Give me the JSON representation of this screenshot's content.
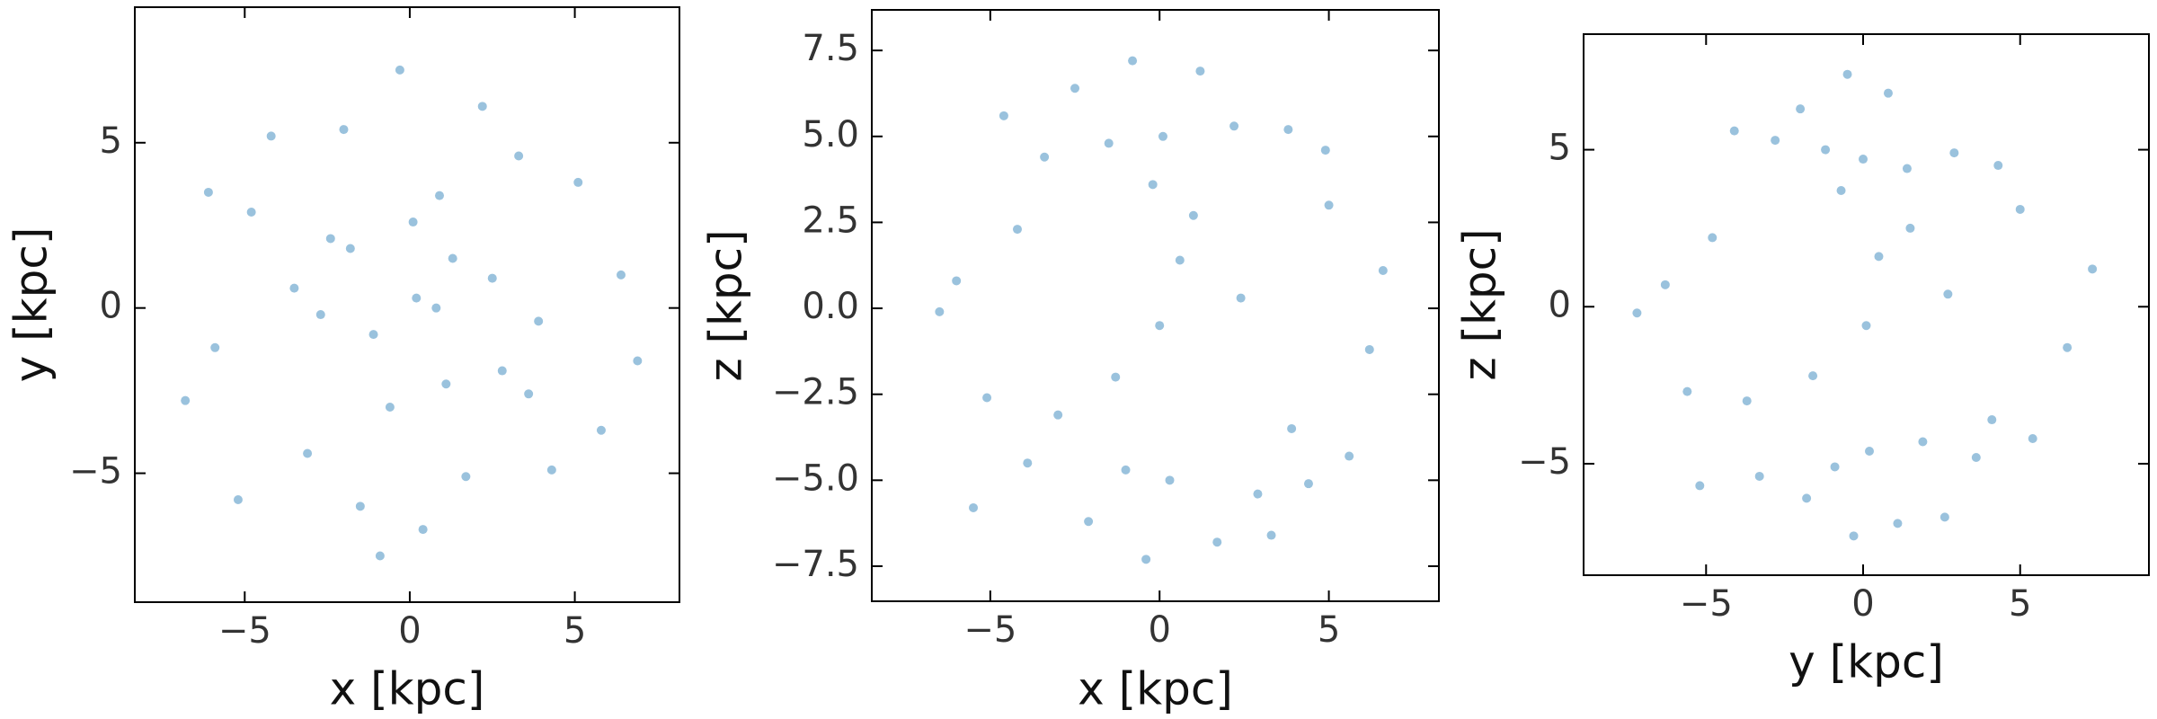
{
  "chart_data": [
    {
      "type": "scatter",
      "x_label": "x [kpc]",
      "y_label": "y [kpc]",
      "color": "#1f77b4",
      "xlim": [
        -8.33,
        8.17
      ],
      "ylim": [
        -8.9,
        9.1
      ],
      "xticks": [
        {
          "value": -5,
          "label": "−5"
        },
        0,
        5
      ],
      "yticks": [
        {
          "value": -5,
          "label": "−5"
        },
        0,
        5
      ],
      "x": [
        0.2,
        -1.1,
        1.3,
        -2.4,
        2.8,
        -0.6,
        0.9,
        -3.5,
        3.9,
        -4.8,
        5.1,
        -5.9,
        6.4,
        -6.8,
        1.7,
        -2.0,
        0.4,
        -0.3,
        2.2,
        -1.5,
        4.3,
        -3.1,
        0.8,
        -4.2,
        3.3,
        -6.1,
        5.8,
        -0.9,
        1.1,
        -2.7,
        2.5,
        -5.2,
        6.9,
        -1.8,
        0.1,
        3.6
      ],
      "values": [
        0.3,
        -0.8,
        1.5,
        2.1,
        -1.9,
        -3.0,
        3.4,
        0.6,
        -0.4,
        2.9,
        3.8,
        -1.2,
        1.0,
        -2.8,
        -5.1,
        5.4,
        -6.7,
        7.2,
        6.1,
        -6.0,
        -4.9,
        -4.4,
        0.0,
        5.2,
        4.6,
        3.5,
        -3.7,
        -7.5,
        -2.3,
        -0.2,
        0.9,
        -5.8,
        -1.6,
        1.8,
        2.6,
        -2.6
      ]
    },
    {
      "type": "scatter",
      "x_label": "x [kpc]",
      "y_label": "z [kpc]",
      "color": "#1f77b4",
      "xlim": [
        -8.5,
        8.25
      ],
      "ylim": [
        -8.52,
        8.68
      ],
      "xticks": [
        {
          "value": -5,
          "label": "−5"
        },
        0,
        5
      ],
      "yticks": [
        {
          "value": -7.5,
          "label": "−7.5"
        },
        {
          "value": -5,
          "label": "−5.0"
        },
        {
          "value": -2.5,
          "label": "−2.5"
        },
        {
          "value": 0,
          "label": "0.0"
        },
        2.5,
        {
          "value": 5,
          "label": "5.0"
        },
        7.5
      ],
      "x": [
        0.1,
        -1.5,
        2.2,
        -3.4,
        3.8,
        -4.6,
        4.9,
        -0.8,
        1.2,
        -2.5,
        0.3,
        -1.0,
        2.9,
        -3.9,
        4.4,
        -5.5,
        5.6,
        -0.4,
        1.7,
        -2.1,
        3.3,
        -6.0,
        6.2,
        -4.2,
        0.6,
        -1.3,
        2.4,
        -3.0,
        5.0,
        -5.1,
        0.0,
        1.0,
        -6.5,
        6.6,
        -0.2,
        3.9
      ],
      "values": [
        5.0,
        4.8,
        5.3,
        4.4,
        5.2,
        5.6,
        4.6,
        7.2,
        6.9,
        6.4,
        -5.0,
        -4.7,
        -5.4,
        -4.5,
        -5.1,
        -5.8,
        -4.3,
        -7.3,
        -6.8,
        -6.2,
        -6.6,
        0.8,
        -1.2,
        2.3,
        1.4,
        -2.0,
        0.3,
        -3.1,
        3.0,
        -2.6,
        -0.5,
        2.7,
        -0.1,
        1.1,
        3.6,
        -3.5
      ]
    },
    {
      "type": "scatter",
      "x_label": "y [kpc]",
      "y_label": "z [kpc]",
      "color": "#1f77b4",
      "xlim": [
        -8.9,
        9.1
      ],
      "ylim": [
        -8.55,
        8.68
      ],
      "xticks": [
        {
          "value": -5,
          "label": "−5"
        },
        0,
        5
      ],
      "yticks": [
        {
          "value": -5,
          "label": "−5"
        },
        0,
        5
      ],
      "x": [
        0.0,
        -1.2,
        1.4,
        -2.8,
        2.9,
        -4.1,
        4.3,
        -0.5,
        0.8,
        -2.0,
        0.2,
        -0.9,
        1.9,
        -3.3,
        3.6,
        -5.2,
        5.4,
        -0.3,
        1.1,
        -1.8,
        2.6,
        -6.3,
        6.5,
        -4.8,
        0.5,
        -1.6,
        2.7,
        -3.7,
        5.0,
        -5.6,
        0.1,
        1.5,
        -7.2,
        7.3,
        -0.7,
        4.1
      ],
      "values": [
        4.7,
        5.0,
        4.4,
        5.3,
        4.9,
        5.6,
        4.5,
        7.4,
        6.8,
        6.3,
        -4.6,
        -5.1,
        -4.3,
        -5.4,
        -4.8,
        -5.7,
        -4.2,
        -7.3,
        -6.9,
        -6.1,
        -6.7,
        0.7,
        -1.3,
        2.2,
        1.6,
        -2.2,
        0.4,
        -3.0,
        3.1,
        -2.7,
        -0.6,
        2.5,
        -0.2,
        1.2,
        3.7,
        -3.6
      ]
    }
  ]
}
